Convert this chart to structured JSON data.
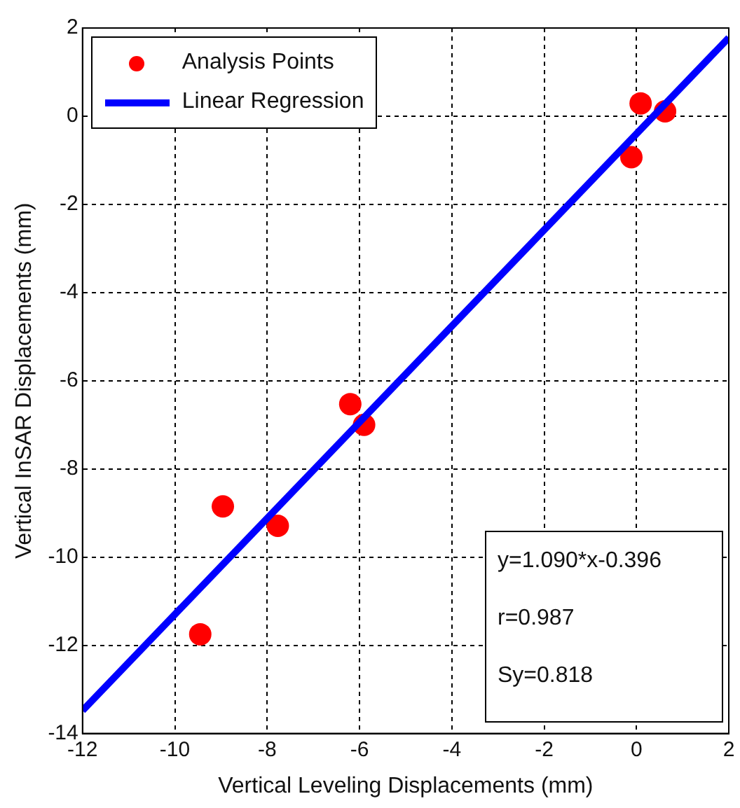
{
  "chart_data": {
    "type": "scatter",
    "xlabel": "Vertical Leveling Displacements (mm)",
    "ylabel": "Vertical InSAR Displacements (mm)",
    "xlim": [
      -12,
      2
    ],
    "ylim": [
      -14,
      2
    ],
    "xticks": [
      -12,
      -10,
      -8,
      -6,
      -4,
      -2,
      0,
      2
    ],
    "yticks": [
      -14,
      -12,
      -10,
      -8,
      -6,
      -4,
      -2,
      0,
      2
    ],
    "grid": true,
    "legend": "top left",
    "marker": "circle",
    "series": [
      {
        "name": "Analysis Points",
        "color": "#ff0000",
        "x": [
          -9.45,
          -8.96,
          -7.77,
          -6.2,
          -5.9,
          -0.11,
          0.09,
          0.62
        ],
        "values": [
          -11.75,
          -8.85,
          -9.29,
          -6.53,
          -7.0,
          -0.93,
          0.29,
          0.11
        ]
      },
      {
        "name": "Linear Regression",
        "type": "line",
        "color": "#0000ff",
        "line_style": "solid",
        "marker": "none",
        "x": [
          -12,
          2
        ],
        "values": [
          -13.48,
          1.78
        ]
      }
    ],
    "annotations": [
      "y=1.090*x-0.396",
      "r=0.987",
      "Sy=0.818"
    ]
  }
}
